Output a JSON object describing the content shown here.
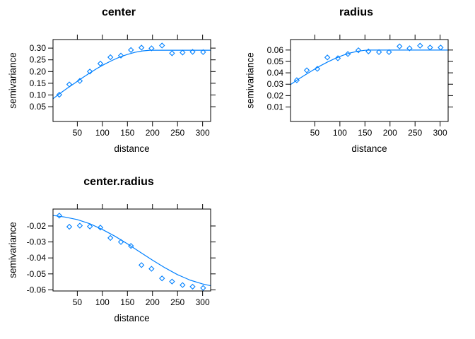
{
  "figure": {
    "background": "#ffffff",
    "accent_color": "#0080ff",
    "text_color": "#000000"
  },
  "chart_data": [
    {
      "id": "center",
      "type": "scatter",
      "title": "center",
      "xlabel": "distance",
      "ylabel": "semivariance",
      "marker": "open-diamond",
      "color": "#0080ff",
      "grid": false,
      "legend": "none",
      "xlim": [
        1.5,
        316
      ],
      "ylim": [
        -0.013,
        0.3365
      ],
      "x_ticks": {
        "values": [
          50,
          100,
          150,
          200,
          250,
          300
        ],
        "labels": [
          "50",
          "100",
          "150",
          "200",
          "250",
          "300"
        ]
      },
      "y_ticks": {
        "values": [
          0.05,
          0.1,
          0.15,
          0.2,
          0.25,
          0.3
        ],
        "labels": [
          "0.05",
          "0.10",
          "0.15",
          "0.20",
          "0.25",
          "0.30"
        ]
      },
      "points": {
        "x": [
          14,
          34,
          55,
          75,
          96,
          116,
          137,
          157,
          178,
          198,
          219,
          239,
          260,
          280,
          301
        ],
        "y": [
          0.101,
          0.145,
          0.16,
          0.2,
          0.234,
          0.261,
          0.268,
          0.292,
          0.302,
          0.299,
          0.311,
          0.278,
          0.281,
          0.284,
          0.283
        ]
      },
      "model_line": {
        "x": [
          1.5,
          15,
          30,
          45,
          60,
          75,
          90,
          105,
          120,
          135,
          150,
          165,
          180,
          195,
          200,
          316
        ],
        "y": [
          0.084,
          0.106,
          0.129,
          0.151,
          0.173,
          0.194,
          0.214,
          0.232,
          0.248,
          0.262,
          0.273,
          0.282,
          0.288,
          0.291,
          0.291,
          0.291
        ]
      }
    },
    {
      "id": "radius",
      "type": "scatter",
      "title": "radius",
      "xlabel": "distance",
      "ylabel": "semivariance",
      "marker": "open-diamond",
      "color": "#0080ff",
      "grid": false,
      "legend": "none",
      "xlim": [
        1.5,
        316
      ],
      "ylim": [
        -0.0027,
        0.0692
      ],
      "x_ticks": {
        "values": [
          50,
          100,
          150,
          200,
          250,
          300
        ],
        "labels": [
          "50",
          "100",
          "150",
          "200",
          "250",
          "300"
        ]
      },
      "y_ticks": {
        "values": [
          0.01,
          0.02,
          0.03,
          0.04,
          0.05,
          0.06
        ],
        "labels": [
          "0.01",
          "0.02",
          "0.03",
          "0.04",
          "0.05",
          "0.06"
        ]
      },
      "points": {
        "x": [
          14,
          34,
          55,
          75,
          96,
          116,
          137,
          157,
          178,
          198,
          219,
          239,
          260,
          280,
          301
        ],
        "y": [
          0.0335,
          0.0422,
          0.0435,
          0.0535,
          0.0528,
          0.0565,
          0.0598,
          0.0588,
          0.0582,
          0.0582,
          0.0632,
          0.0615,
          0.0638,
          0.0622,
          0.0622
        ]
      },
      "model_line": {
        "x": [
          1.5,
          15,
          30,
          45,
          60,
          75,
          90,
          105,
          120,
          135,
          150,
          160,
          316
        ],
        "y": [
          0.0297,
          0.0338,
          0.038,
          0.042,
          0.0459,
          0.0494,
          0.0525,
          0.0552,
          0.0574,
          0.0589,
          0.0598,
          0.06,
          0.06
        ]
      }
    },
    {
      "id": "center.radius",
      "type": "scatter",
      "title": "center.radius",
      "xlabel": "distance",
      "ylabel": "semivariance",
      "marker": "open-diamond",
      "color": "#0080ff",
      "grid": false,
      "legend": "none",
      "xlim": [
        1.5,
        316
      ],
      "ylim": [
        -0.0607,
        -0.0094
      ],
      "x_ticks": {
        "values": [
          50,
          100,
          150,
          200,
          250,
          300
        ],
        "labels": [
          "50",
          "100",
          "150",
          "200",
          "250",
          "300"
        ]
      },
      "y_ticks": {
        "values": [
          -0.06,
          -0.05,
          -0.04,
          -0.03,
          -0.02
        ],
        "labels": [
          "-0.06",
          "-0.05",
          "-0.04",
          "-0.03",
          "-0.02"
        ]
      },
      "points": {
        "x": [
          14,
          34,
          55,
          75,
          96,
          116,
          137,
          157,
          178,
          198,
          219,
          239,
          260,
          280,
          301
        ],
        "y": [
          -0.0135,
          -0.0205,
          -0.0198,
          -0.0203,
          -0.021,
          -0.0275,
          -0.03,
          -0.0325,
          -0.0445,
          -0.0468,
          -0.0528,
          -0.0548,
          -0.057,
          -0.058,
          -0.0588
        ]
      },
      "model_line": {
        "x": [
          1.5,
          25,
          50,
          75,
          100,
          125,
          150,
          175,
          200,
          225,
          250,
          275,
          300,
          316
        ],
        "y": [
          -0.0134,
          -0.0144,
          -0.016,
          -0.0186,
          -0.0222,
          -0.0264,
          -0.0312,
          -0.0363,
          -0.0414,
          -0.0462,
          -0.0505,
          -0.0539,
          -0.0563,
          -0.0574
        ]
      }
    }
  ]
}
